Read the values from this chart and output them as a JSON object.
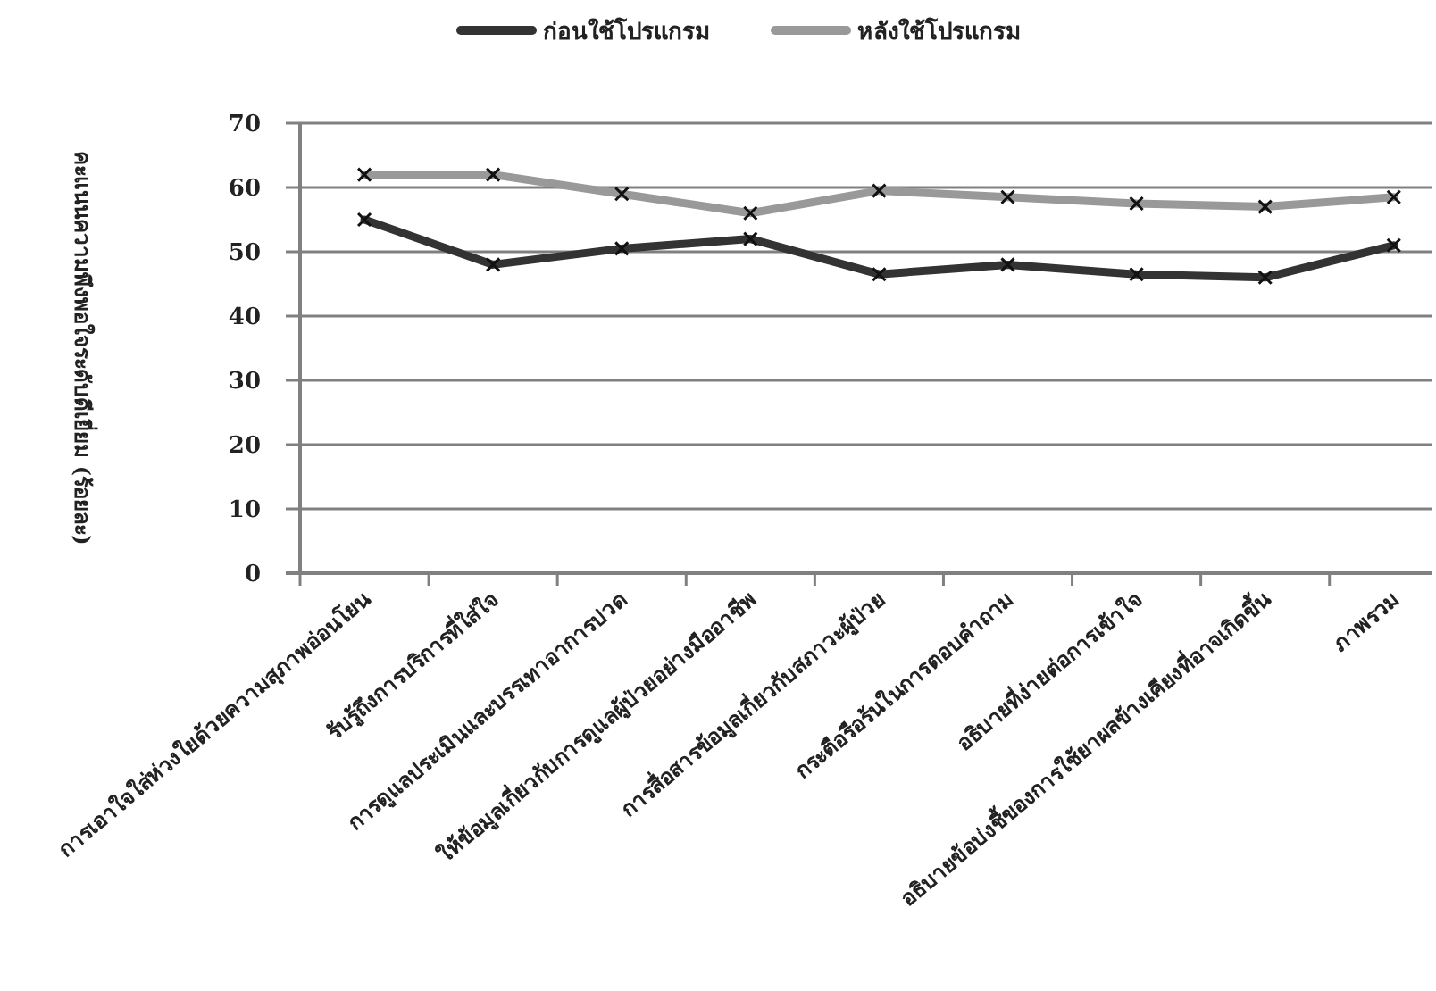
{
  "chart_data": {
    "type": "line",
    "ylabel": "คะแนนความพึงพอใจระดับดีเยี่ยม (ร้อยละ)",
    "categories": [
      "การเอาใจใส่ห่วงใยด้วยความสุภาพอ่อนโยน",
      "รับรู้ถึงการบริการที่ใส่ใจ",
      "การดูแลประเมินและบรรเทาอาการปวด",
      "ให้ข้อมูลเกี่ยวกับการดูแลผู้ป่วยอย่างมืออาชีพ",
      "การสื่อสารข้อมูลเกี่ยวกับสภาวะผู้ป่วย",
      "กระตือรือร้นในการตอบคำถาม",
      "อธิบายที่ง่ายต่อการเข้าใจ",
      "อธิบายข้อบ่งชี้ของการใช้ยาผลข้างเคียงที่อาจเกิดขึ้น",
      "ภาพรวม"
    ],
    "series": [
      {
        "name": "ก่อนใช้โปรแกรม",
        "color": "#333333",
        "values": [
          55,
          48,
          50.5,
          52,
          46.5,
          48,
          46.5,
          46,
          51
        ]
      },
      {
        "name": "หลังใช้โปรแกรม",
        "color": "#999999",
        "values": [
          62,
          62,
          59,
          56,
          59.5,
          58.5,
          57.5,
          57,
          58.5
        ]
      }
    ],
    "ylim": [
      0,
      70
    ],
    "yticks": [
      0,
      10,
      20,
      30,
      40,
      50,
      60,
      70
    ],
    "grid": "y",
    "legend": "top",
    "marker": "cross",
    "line_style": "solid"
  }
}
